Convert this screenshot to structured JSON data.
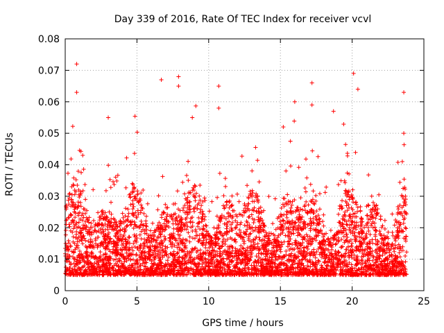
{
  "chart_data": {
    "type": "scatter",
    "title": "Day 339 of 2016, Rate Of TEC Index for receiver vcvl",
    "xlabel": "GPS time / hours",
    "ylabel": "ROTI / TECUs",
    "xlim": [
      0,
      25
    ],
    "ylim": [
      0,
      0.08
    ],
    "xticks": [
      0,
      5,
      10,
      15,
      20,
      25
    ],
    "yticks": [
      0,
      0.01,
      0.02,
      0.03,
      0.04,
      0.05,
      0.06,
      0.07,
      0.08
    ],
    "grid": true,
    "marker": "+",
    "series": [
      {
        "name": "ROTI",
        "color": "#ff0000",
        "data_range": {
          "x": [
            0,
            23.8
          ],
          "y_typical": [
            0.005,
            0.02
          ]
        },
        "highlights": [
          {
            "x": 0.8,
            "y": 0.072
          },
          {
            "x": 0.8,
            "y": 0.063
          },
          {
            "x": 3.0,
            "y": 0.055
          },
          {
            "x": 6.7,
            "y": 0.067
          },
          {
            "x": 7.9,
            "y": 0.068
          },
          {
            "x": 7.9,
            "y": 0.065
          },
          {
            "x": 10.7,
            "y": 0.065
          },
          {
            "x": 10.7,
            "y": 0.058
          },
          {
            "x": 15.2,
            "y": 0.052
          },
          {
            "x": 16.0,
            "y": 0.06
          },
          {
            "x": 17.2,
            "y": 0.066
          },
          {
            "x": 17.2,
            "y": 0.059
          },
          {
            "x": 18.7,
            "y": 0.057
          },
          {
            "x": 20.1,
            "y": 0.069
          },
          {
            "x": 20.4,
            "y": 0.064
          },
          {
            "x": 23.6,
            "y": 0.063
          },
          {
            "x": 23.6,
            "y": 0.05
          }
        ]
      }
    ]
  }
}
